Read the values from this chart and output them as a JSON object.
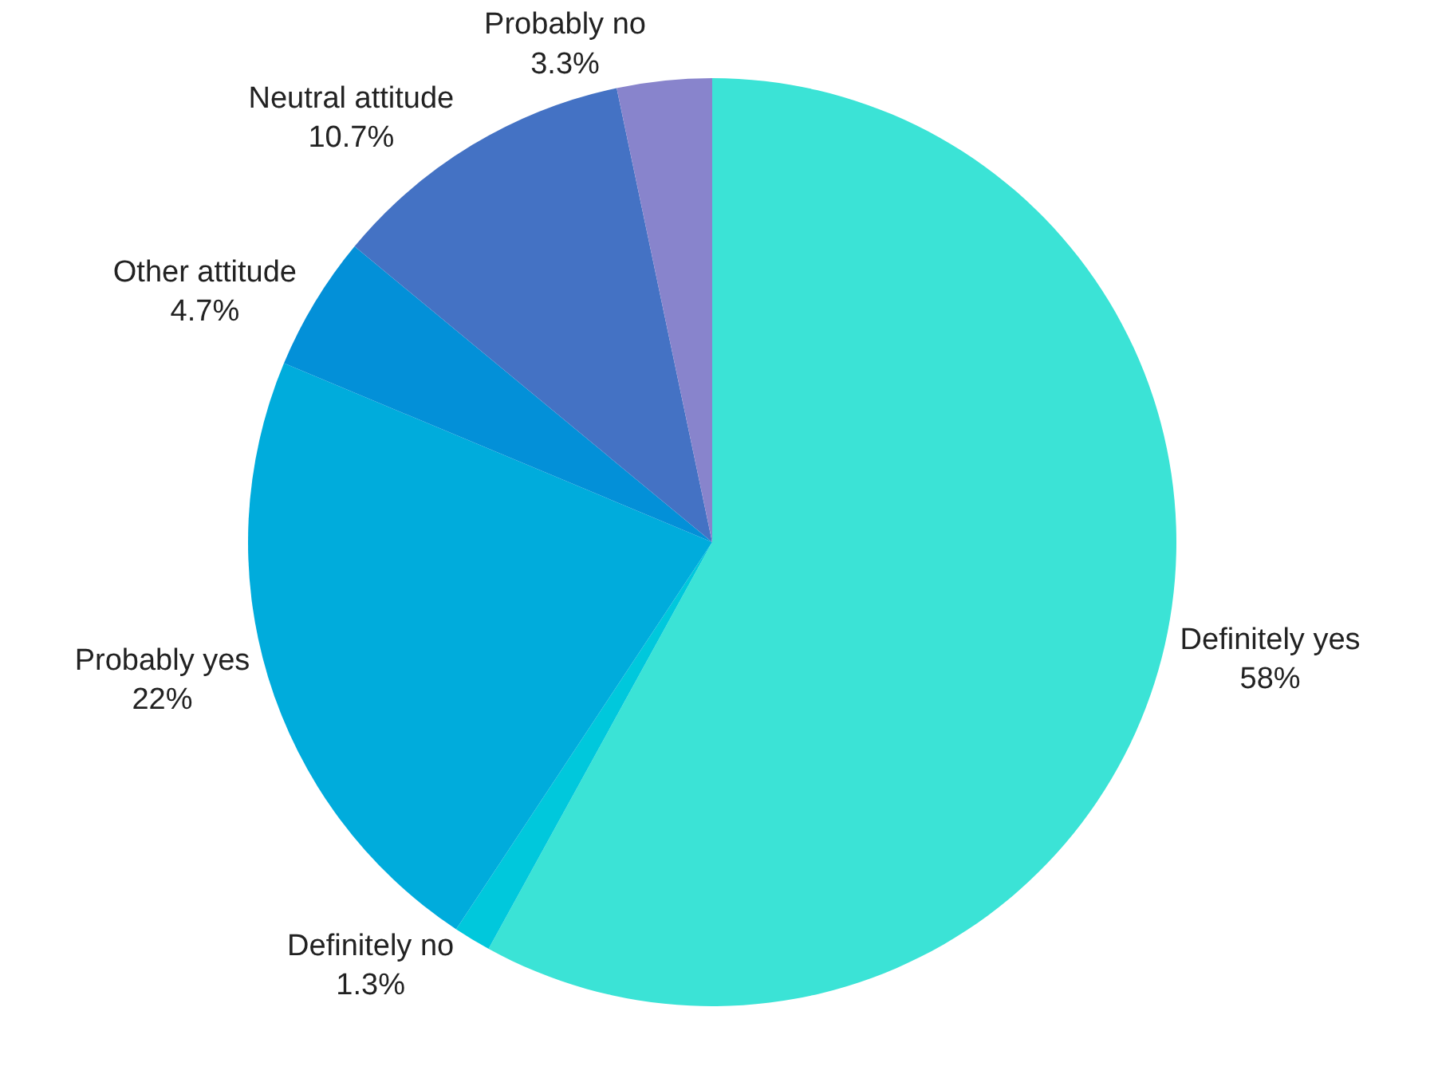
{
  "chart_data": {
    "type": "pie",
    "categories": [
      "Definitely yes",
      "Definitely no",
      "Probably yes",
      "Other attitude",
      "Neutral attitude",
      "Probably no"
    ],
    "values": [
      58,
      1.3,
      22,
      4.7,
      10.7,
      3.3
    ],
    "value_labels": [
      "58%",
      "1.3%",
      "22%",
      "4.7%",
      "10.7%",
      "3.3%"
    ],
    "colors": [
      "#3be3d6",
      "#00c8dc",
      "#00acdc",
      "#0390d8",
      "#4472c4",
      "#8884cc"
    ],
    "legend": false
  }
}
